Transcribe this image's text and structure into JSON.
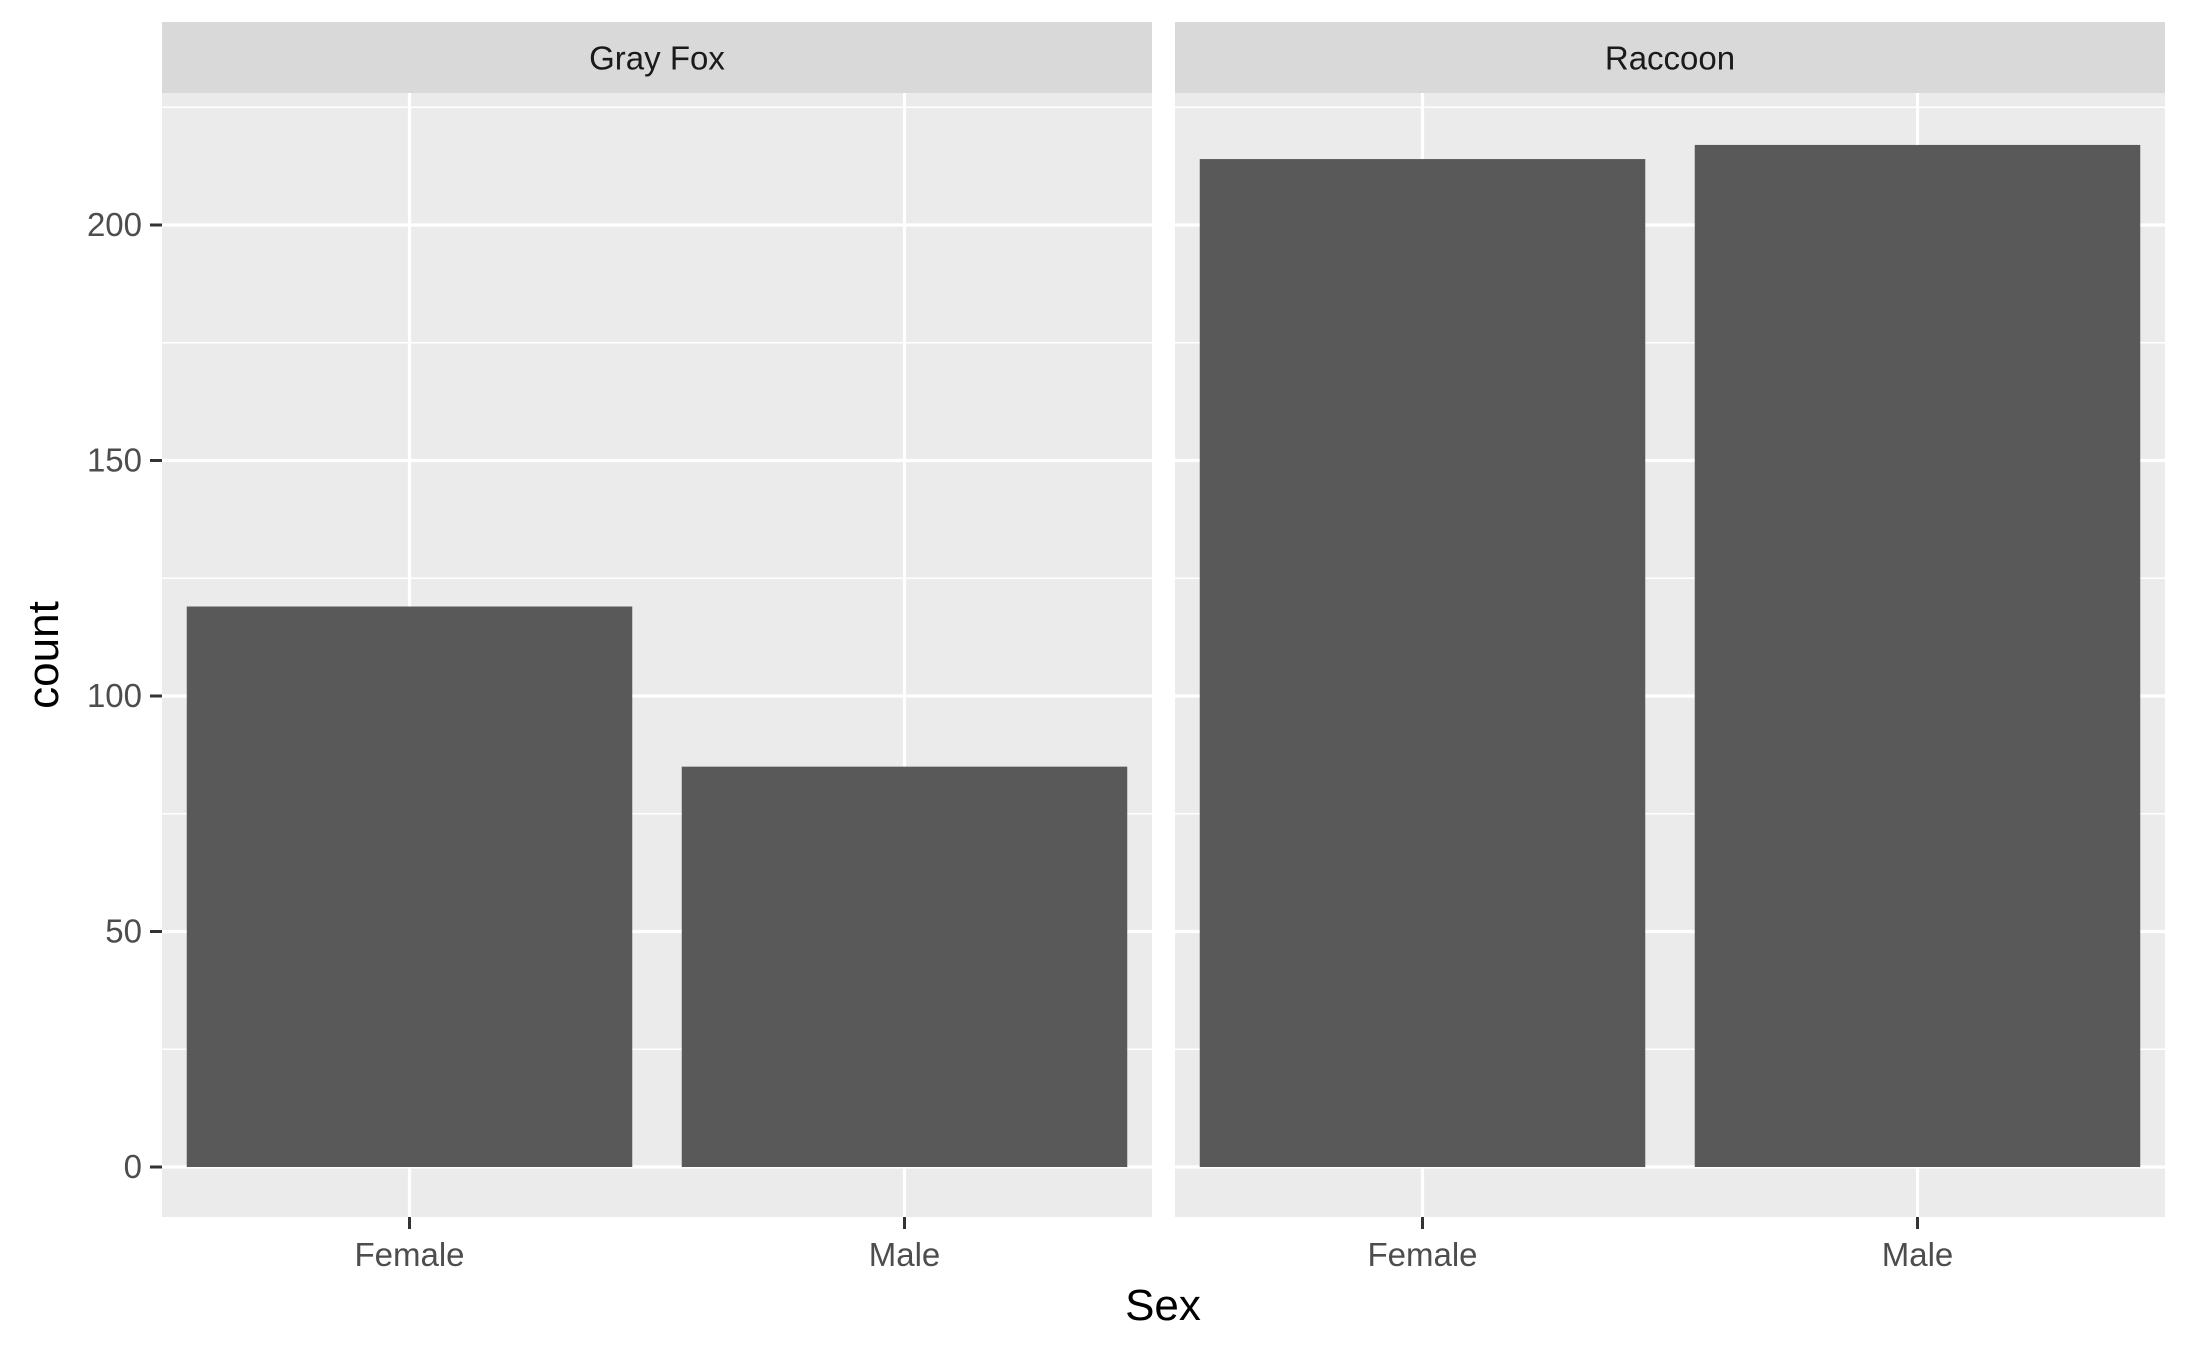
{
  "chart_data": {
    "type": "bar",
    "facet_by": "species",
    "xlabel": "Sex",
    "ylabel": "count",
    "ylim": [
      0,
      225
    ],
    "y_ticks": [
      0,
      50,
      100,
      150,
      200
    ],
    "categories": [
      "Female",
      "Male"
    ],
    "grid": true,
    "colors": {
      "bar": "#595959",
      "panel": "#ebebeb",
      "strip": "#d9d9d9",
      "grid": "#ffffff"
    },
    "panels": [
      {
        "title": "Gray Fox",
        "values": [
          119,
          85
        ]
      },
      {
        "title": "Raccoon",
        "values": [
          214,
          217
        ]
      }
    ]
  }
}
